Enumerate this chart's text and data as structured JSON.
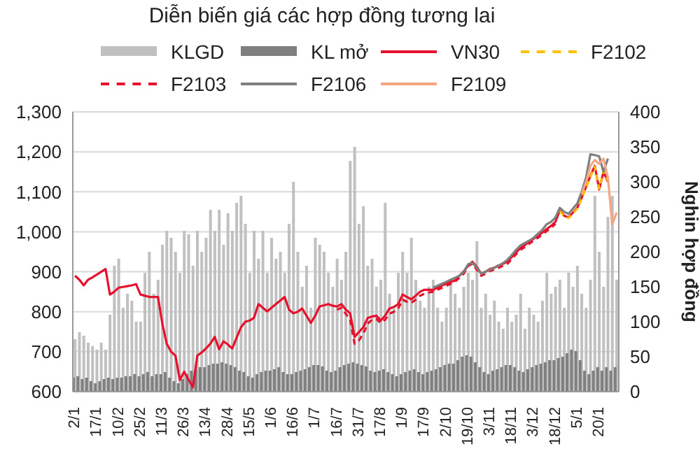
{
  "chart_data": {
    "type": "line",
    "title": "Diễn biến giá các hợp đồng tương lai",
    "y2label": "Nghin hợp đồng",
    "legend": "top",
    "grid": "y",
    "marker": "none",
    "categories": [
      "2/1",
      null,
      null,
      null,
      null,
      "17/1",
      null,
      null,
      null,
      null,
      "10/2",
      null,
      null,
      null,
      null,
      "25/2",
      null,
      null,
      null,
      null,
      "11/3",
      null,
      null,
      null,
      null,
      "26/3",
      null,
      null,
      null,
      null,
      "13/4",
      null,
      null,
      null,
      null,
      "28/4",
      null,
      null,
      null,
      null,
      "15/5",
      null,
      null,
      null,
      null,
      "1/6",
      null,
      null,
      null,
      null,
      "16/6",
      null,
      null,
      null,
      null,
      "1/7",
      null,
      null,
      null,
      null,
      "16/7",
      null,
      null,
      null,
      null,
      "31/7",
      null,
      null,
      null,
      null,
      "17/8",
      null,
      null,
      null,
      null,
      "1/9",
      null,
      null,
      null,
      null,
      "17/9",
      null,
      null,
      null,
      null,
      "2/10",
      null,
      null,
      null,
      null,
      "19/10",
      null,
      null,
      null,
      null,
      "3/11",
      null,
      null,
      null,
      null,
      "18/11",
      null,
      null,
      null,
      null,
      "3/12",
      null,
      null,
      null,
      null,
      "18/12",
      null,
      null,
      null,
      null,
      "5/1",
      null,
      null,
      null,
      null,
      "20/1",
      null,
      null,
      null,
      null
    ],
    "ylim": [
      600,
      1300
    ],
    "yticks": [
      600,
      700,
      800,
      900,
      {
        "value": 1000,
        "label": "1,000"
      },
      {
        "value": 1100,
        "label": "1,100"
      },
      {
        "value": 1200,
        "label": "1,200"
      },
      {
        "value": 1300,
        "label": "1,300"
      }
    ],
    "y2lim": [
      0,
      400
    ],
    "y2ticks": [
      0,
      50,
      100,
      150,
      200,
      250,
      300,
      350,
      400
    ],
    "series": [
      {
        "name": "KLGD",
        "type": "bar",
        "axis": "y2",
        "color": "#c0c0c0",
        "values": [
          75,
          85,
          80,
          70,
          65,
          60,
          70,
          60,
          110,
          180,
          190,
          120,
          140,
          130,
          100,
          100,
          170,
          200,
          140,
          160,
          210,
          230,
          220,
          200,
          170,
          230,
          225,
          180,
          230,
          200,
          220,
          260,
          230,
          260,
          210,
          255,
          230,
          270,
          280,
          240,
          170,
          230,
          190,
          230,
          170,
          220,
          190,
          200,
          170,
          240,
          300,
          200,
          150,
          180,
          120,
          220,
          210,
          200,
          170,
          150,
          190,
          160,
          200,
          330,
          350,
          240,
          265,
          180,
          190,
          150,
          160,
          270,
          140,
          120,
          170,
          200,
          170,
          220,
          160,
          130,
          120,
          150,
          160,
          120,
          100,
          120,
          160,
          140,
          120,
          150,
          170,
          160,
          215,
          120,
          140,
          110,
          130,
          100,
          90,
          120,
          100,
          110,
          140,
          90,
          120,
          110,
          100,
          130,
          170,
          140,
          150,
          160,
          120,
          170,
          150,
          180,
          140,
          120,
          160,
          280,
          200,
          150,
          250,
          280,
          160
        ]
      },
      {
        "name": "KL mở",
        "type": "bar",
        "axis": "y2",
        "color": "#7f7f7f",
        "values": [
          20,
          22,
          18,
          20,
          15,
          12,
          15,
          18,
          20,
          18,
          20,
          20,
          22,
          22,
          25,
          22,
          25,
          28,
          22,
          25,
          25,
          28,
          20,
          15,
          12,
          18,
          25,
          30,
          32,
          35,
          35,
          38,
          40,
          40,
          42,
          40,
          38,
          35,
          30,
          28,
          22,
          20,
          25,
          28,
          30,
          30,
          32,
          35,
          28,
          25,
          25,
          28,
          30,
          32,
          35,
          38,
          38,
          36,
          30,
          28,
          30,
          35,
          38,
          40,
          42,
          40,
          38,
          36,
          30,
          28,
          30,
          32,
          28,
          25,
          22,
          25,
          28,
          30,
          32,
          28,
          25,
          28,
          30,
          32,
          35,
          38,
          40,
          40,
          45,
          50,
          52,
          50,
          42,
          35,
          28,
          25,
          30,
          32,
          35,
          38,
          38,
          35,
          30,
          28,
          32,
          35,
          38,
          40,
          42,
          45,
          45,
          48,
          50,
          55,
          60,
          58,
          45,
          30,
          25,
          30,
          35,
          30,
          35,
          30,
          35
        ]
      },
      {
        "name": "VN30",
        "color": "#e8112d",
        "line_style": "solid",
        "values": [
          890,
          880,
          866,
          880,
          886,
          893,
          900,
          907,
          843,
          850,
          860,
          862,
          864,
          866,
          869,
          843,
          840,
          837,
          837,
          837,
          770,
          720,
          700,
          690,
          629,
          650,
          630,
          611,
          690,
          698,
          708,
          720,
          737,
          706,
          726,
          718,
          708,
          735,
          761,
          775,
          778,
          785,
          819,
          810,
          801,
          810,
          819,
          828,
          837,
          805,
          796,
          800,
          808,
          790,
          772,
          790,
          813,
          816,
          819,
          815,
          813,
          819,
          805,
          796,
          737,
          749,
          761,
          784,
          788,
          790,
          778,
          790,
          808,
          812,
          819,
          843,
          837,
          831,
          840,
          850,
          855,
          855,
          855,
          860,
          866,
          870,
          875,
          878,
          890,
          901,
          915,
          925,
          912,
          895,
          900,
          907,
          910,
          916,
          920,
          925,
          937,
          948,
          960,
          967,
          975,
          983,
          990,
          998,
          1007,
          1015,
          1025,
          1054,
          1040,
          1036,
          1048,
          1060,
          1085,
          1112,
          1140,
          1165,
          1106,
          1150,
          1125,
          null,
          null
        ]
      },
      {
        "name": "F2102",
        "color": "#ffc000",
        "line_style": "dashed",
        "values": [
          null,
          null,
          null,
          null,
          null,
          null,
          null,
          null,
          null,
          null,
          null,
          null,
          null,
          null,
          null,
          null,
          null,
          null,
          null,
          null,
          null,
          null,
          null,
          null,
          null,
          null,
          null,
          null,
          null,
          null,
          null,
          null,
          null,
          null,
          null,
          null,
          null,
          null,
          null,
          null,
          null,
          null,
          null,
          null,
          null,
          null,
          null,
          null,
          null,
          null,
          null,
          null,
          null,
          null,
          null,
          null,
          null,
          null,
          null,
          null,
          null,
          null,
          null,
          null,
          null,
          null,
          null,
          null,
          null,
          null,
          null,
          null,
          null,
          null,
          null,
          null,
          null,
          null,
          null,
          null,
          null,
          null,
          null,
          null,
          null,
          null,
          null,
          null,
          null,
          null,
          null,
          null,
          null,
          null,
          null,
          null,
          null,
          null,
          null,
          null,
          null,
          null,
          null,
          null,
          null,
          null,
          null,
          null,
          null,
          null,
          null,
          1052,
          1038,
          1034,
          1046,
          1058,
          1083,
          1110,
          1138,
          1163,
          1108,
          1152,
          1128,
          null,
          null
        ]
      },
      {
        "name": "F2103",
        "color": "#e8112d",
        "line_style": "dashed",
        "values": [
          null,
          null,
          null,
          null,
          null,
          null,
          null,
          null,
          null,
          null,
          null,
          null,
          null,
          null,
          null,
          null,
          null,
          null,
          null,
          null,
          null,
          null,
          null,
          null,
          null,
          null,
          null,
          null,
          null,
          null,
          null,
          null,
          null,
          null,
          null,
          null,
          null,
          null,
          null,
          null,
          null,
          null,
          null,
          null,
          null,
          null,
          null,
          null,
          null,
          null,
          null,
          null,
          null,
          null,
          null,
          null,
          null,
          null,
          null,
          null,
          805,
          810,
          795,
          780,
          720,
          728,
          745,
          770,
          780,
          782,
          772,
          780,
          795,
          800,
          808,
          830,
          825,
          822,
          830,
          840,
          845,
          848,
          850,
          855,
          860,
          865,
          870,
          875,
          885,
          895,
          915,
          920,
          905,
          890,
          895,
          902,
          905,
          910,
          915,
          920,
          932,
          944,
          955,
          962,
          970,
          978,
          985,
          993,
          1002,
          1010,
          1020,
          null,
          null,
          null,
          null,
          null,
          null,
          null,
          null,
          null,
          null,
          null,
          null,
          null,
          null
        ]
      },
      {
        "name": "F2106",
        "color": "#7f7f7f",
        "line_style": "solid",
        "values": [
          null,
          null,
          null,
          null,
          null,
          null,
          null,
          null,
          null,
          null,
          null,
          null,
          null,
          null,
          null,
          null,
          null,
          null,
          null,
          null,
          null,
          null,
          null,
          null,
          null,
          null,
          null,
          null,
          null,
          null,
          null,
          null,
          null,
          null,
          null,
          null,
          null,
          null,
          null,
          null,
          null,
          null,
          null,
          null,
          null,
          null,
          null,
          null,
          null,
          null,
          null,
          null,
          null,
          null,
          null,
          null,
          null,
          null,
          null,
          null,
          null,
          null,
          null,
          null,
          null,
          null,
          null,
          null,
          null,
          null,
          null,
          null,
          null,
          null,
          null,
          null,
          null,
          null,
          null,
          null,
          null,
          null,
          860,
          865,
          870,
          875,
          880,
          885,
          890,
          900,
          919,
          922,
          910,
          895,
          900,
          905,
          910,
          915,
          922,
          930,
          942,
          955,
          966,
          972,
          978,
          985,
          995,
          1005,
          1019,
          1025,
          1036,
          1060,
          1050,
          1045,
          1058,
          1071,
          1100,
          1136,
          1194,
          1192,
          1189,
          1150,
          1183,
          null,
          null
        ]
      },
      {
        "name": "F2109",
        "color": "#f4a582",
        "line_style": "solid",
        "values": [
          null,
          null,
          null,
          null,
          null,
          null,
          null,
          null,
          null,
          null,
          null,
          null,
          null,
          null,
          null,
          null,
          null,
          null,
          null,
          null,
          null,
          null,
          null,
          null,
          null,
          null,
          null,
          null,
          null,
          null,
          null,
          null,
          null,
          null,
          null,
          null,
          null,
          null,
          null,
          null,
          null,
          null,
          null,
          null,
          null,
          null,
          null,
          null,
          null,
          null,
          null,
          null,
          null,
          null,
          null,
          null,
          null,
          null,
          null,
          null,
          null,
          null,
          null,
          null,
          null,
          null,
          null,
          null,
          null,
          null,
          null,
          null,
          null,
          null,
          null,
          null,
          null,
          null,
          null,
          null,
          null,
          null,
          null,
          null,
          null,
          null,
          null,
          null,
          null,
          null,
          null,
          null,
          null,
          null,
          null,
          null,
          null,
          null,
          null,
          null,
          null,
          null,
          null,
          null,
          null,
          null,
          null,
          null,
          null,
          null,
          null,
          null,
          null,
          null,
          null,
          null,
          1095,
          1125,
          1165,
          1180,
          1170,
          1183,
          1136,
          1019,
          1048
        ]
      }
    ]
  }
}
